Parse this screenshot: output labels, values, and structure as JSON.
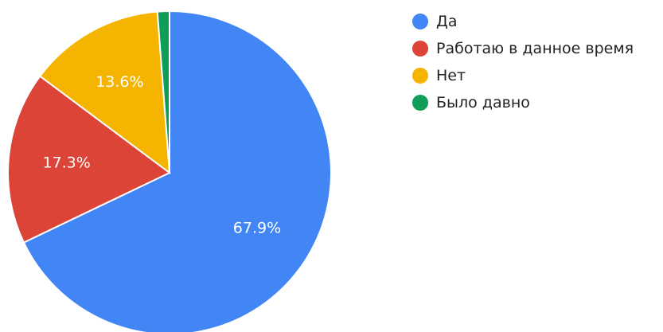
{
  "chart_data": {
    "type": "pie",
    "title": "",
    "slices": [
      {
        "label": "Да",
        "value": 67.9,
        "display": "67.9%",
        "color": "#4285f4"
      },
      {
        "label": "Работаю в данное время",
        "value": 17.3,
        "display": "17.3%",
        "color": "#db4437"
      },
      {
        "label": "Нет",
        "value": 13.6,
        "display": "13.6%",
        "color": "#f4b400"
      },
      {
        "label": "Было давно",
        "value": 1.2,
        "display": "",
        "color": "#0f9d58"
      }
    ],
    "start_angle_deg": 0,
    "direction": "clockwise",
    "legend_position": "right"
  }
}
